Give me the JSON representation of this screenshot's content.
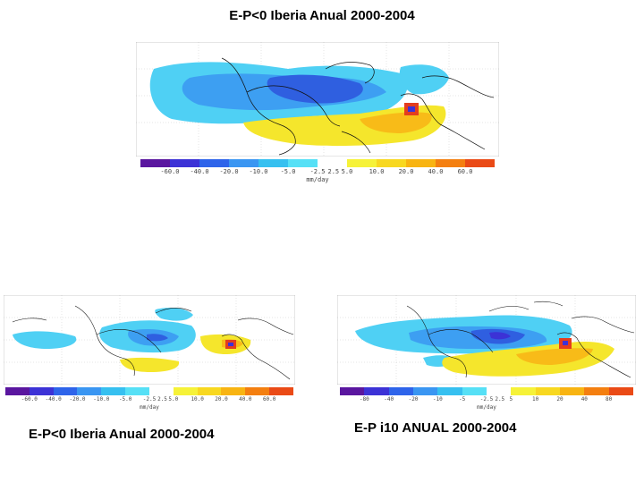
{
  "slide": {
    "title": "E-P<0 Iberia Anual 2000-2004"
  },
  "panels": [
    {
      "id": "top",
      "caption": "",
      "tick_labels": [
        "-60.0",
        "-40.0",
        "-20.0",
        "-10.0",
        "-5.0",
        "-2.5",
        "2.5",
        "5.0",
        "10.0",
        "20.0",
        "40.0",
        "60.0"
      ],
      "units": "mm/day"
    },
    {
      "id": "bottom-left",
      "caption": "E-P<0 Iberia Anual 2000-2004",
      "tick_labels": [
        "-60.0",
        "-40.0",
        "-20.0",
        "-10.0",
        "-5.0",
        "-2.5",
        "2.5",
        "5.0",
        "10.0",
        "20.0",
        "40.0",
        "60.0"
      ],
      "units": "mm/day"
    },
    {
      "id": "bottom-right",
      "caption": "E-P i10 ANUAL 2000-2004",
      "tick_labels": [
        "-80",
        "-40",
        "-20",
        "-10",
        "-5",
        "-2.5",
        "2.5",
        "5",
        "10",
        "20",
        "40",
        "80"
      ],
      "units": "mm/day"
    }
  ],
  "colorscale": [
    "#5a169f",
    "#3c32d6",
    "#2e64ea",
    "#3a96f2",
    "#36c0f0",
    "#56e0f6",
    "#ffffff",
    "#f6f238",
    "#f8d820",
    "#f8b412",
    "#f47f10",
    "#ea4a16"
  ],
  "colors": {
    "deep_blue": "#2f5fe0",
    "mid_blue": "#3d9ff2",
    "light_blue": "#4fd0f4",
    "yellow": "#f5e62c",
    "orange": "#f8bb18",
    "red": "#e43d1d",
    "coast": "#111111"
  }
}
